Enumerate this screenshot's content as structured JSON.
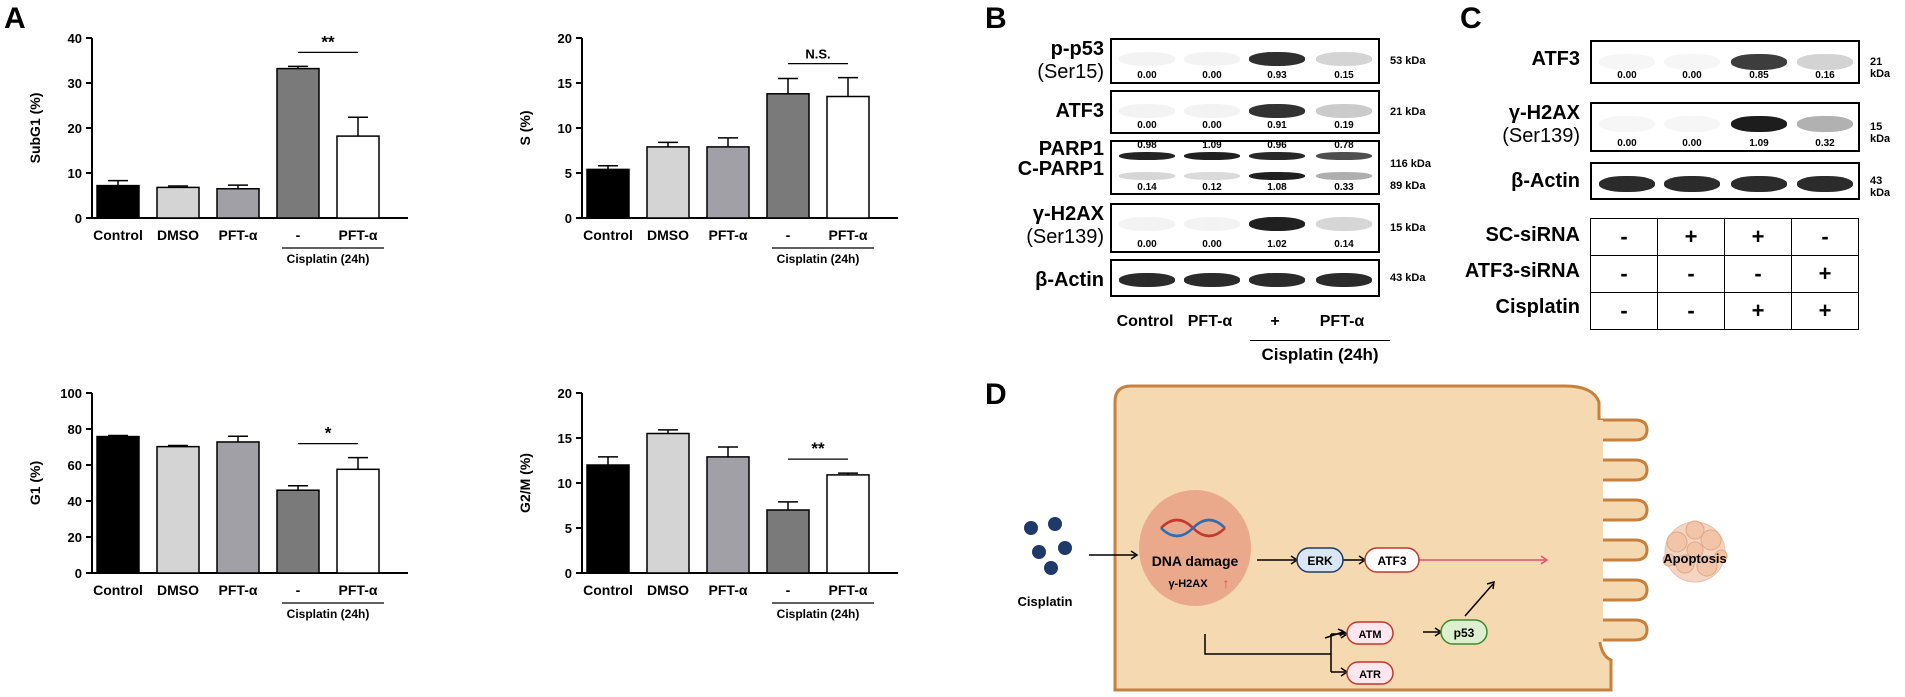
{
  "panels": {
    "A": "A",
    "B": "B",
    "C": "C",
    "D": "D"
  },
  "colors": {
    "control": "#000000",
    "dmso": "#d4d4d4",
    "pft": "#a0a0a6",
    "cis": "#7a7a7a",
    "cispft": "#ffffff",
    "cell": "#f5d9b0",
    "cellBorder": "#c8803f",
    "nucleus": "#eaa98b"
  },
  "chart_data": [
    {
      "type": "bar",
      "id": "subg1",
      "ylabel": "SubG1 (%)",
      "ylim": [
        0,
        40
      ],
      "yticks": [
        "0",
        "10",
        "20",
        "30",
        "40"
      ],
      "categories": [
        "Control",
        "DMSO",
        "PFT-α",
        "-",
        "PFT-α"
      ],
      "values": [
        7.2,
        6.8,
        6.5,
        33.2,
        18.2
      ],
      "errors": [
        1.1,
        0.3,
        0.8,
        0.5,
        4.2
      ],
      "group_label": "Cisplatin (24h)",
      "significance": "**"
    },
    {
      "type": "bar",
      "id": "s",
      "ylabel": "S (%)",
      "ylim": [
        0,
        20
      ],
      "yticks": [
        "0",
        "5",
        "10",
        "15",
        "20"
      ],
      "categories": [
        "Control",
        "DMSO",
        "PFT-α",
        "-",
        "PFT-α"
      ],
      "values": [
        5.4,
        7.9,
        7.9,
        13.8,
        13.5
      ],
      "errors": [
        0.4,
        0.5,
        1.0,
        1.7,
        2.1
      ],
      "group_label": "Cisplatin (24h)",
      "significance": "N.S."
    },
    {
      "type": "bar",
      "id": "g1",
      "ylabel": "G1 (%)",
      "ylim": [
        0,
        100
      ],
      "yticks": [
        "0",
        "20",
        "40",
        "60",
        "80",
        "100"
      ],
      "categories": [
        "Control",
        "DMSO",
        "PFT-α",
        "-",
        "PFT-α"
      ],
      "values": [
        75.8,
        70.2,
        72.8,
        46.0,
        57.6
      ],
      "errors": [
        0.6,
        0.6,
        3.2,
        2.5,
        6.5
      ],
      "group_label": "Cisplatin (24h)",
      "significance": "*"
    },
    {
      "type": "bar",
      "id": "g2m",
      "ylabel": "G2/M (%)",
      "ylim": [
        0,
        20
      ],
      "yticks": [
        "0",
        "5",
        "10",
        "15",
        "20"
      ],
      "categories": [
        "Control",
        "DMSO",
        "PFT-α",
        "-",
        "PFT-α"
      ],
      "values": [
        12.0,
        15.5,
        12.9,
        7.0,
        10.9
      ],
      "errors": [
        0.9,
        0.4,
        1.1,
        0.9,
        0.2
      ],
      "group_label": "Cisplatin (24h)",
      "significance": "**"
    }
  ],
  "blotB": {
    "rows": [
      {
        "label": "p-p53",
        "sub": "(Ser15)",
        "kda": "53 kDa",
        "values": [
          "0.00",
          "0.00",
          "0.93",
          "0.15"
        ]
      },
      {
        "label": "ATF3",
        "sub": "",
        "kda": "21 kDa",
        "values": [
          "0.00",
          "0.00",
          "0.91",
          "0.19"
        ]
      },
      {
        "label": "PARP1",
        "sub": "",
        "kda": "116 kDa",
        "values": [
          "0.98",
          "1.09",
          "0.96",
          "0.78"
        ]
      },
      {
        "label": "C-PARP1",
        "sub": "",
        "kda": "89 kDa",
        "values": [
          "0.14",
          "0.12",
          "1.08",
          "0.33"
        ]
      },
      {
        "label": "γ-H2AX",
        "sub": "(Ser139)",
        "kda": "15 kDa",
        "values": [
          "0.00",
          "0.00",
          "1.02",
          "0.14"
        ]
      },
      {
        "label": "β-Actin",
        "sub": "",
        "kda": "43 kDa",
        "values": []
      }
    ],
    "lanes": [
      "Control",
      "PFT-α",
      "+",
      "PFT-α"
    ],
    "group": "Cisplatin (24h)"
  },
  "blotC": {
    "rows": [
      {
        "label": "ATF3",
        "sub": "",
        "kda": "21 kDa",
        "values": [
          "0.00",
          "0.00",
          "0.85",
          "0.16"
        ]
      },
      {
        "label": "γ-H2AX",
        "sub": "(Ser139)",
        "kda": "15 kDa",
        "values": [
          "0.00",
          "0.00",
          "1.09",
          "0.32"
        ]
      },
      {
        "label": "β-Actin",
        "sub": "",
        "kda": "43 kDa",
        "values": []
      }
    ],
    "conditions": [
      {
        "label": "SC-siRNA",
        "marks": [
          "-",
          "+",
          "+",
          "-"
        ]
      },
      {
        "label": "ATF3-siRNA",
        "marks": [
          "-",
          "-",
          "-",
          "+"
        ]
      },
      {
        "label": "Cisplatin",
        "marks": [
          "-",
          "-",
          "+",
          "+"
        ]
      }
    ]
  },
  "diagram": {
    "cisplatin": "Cisplatin",
    "dna_damage": "DNA damage",
    "h2ax": "γ-H2AX",
    "up_arrow": "↑",
    "erk": "ERK",
    "atf3": "ATF3",
    "atm": "ATM",
    "atr": "ATR",
    "p53": "p53",
    "apoptosis": "Apoptosis"
  }
}
